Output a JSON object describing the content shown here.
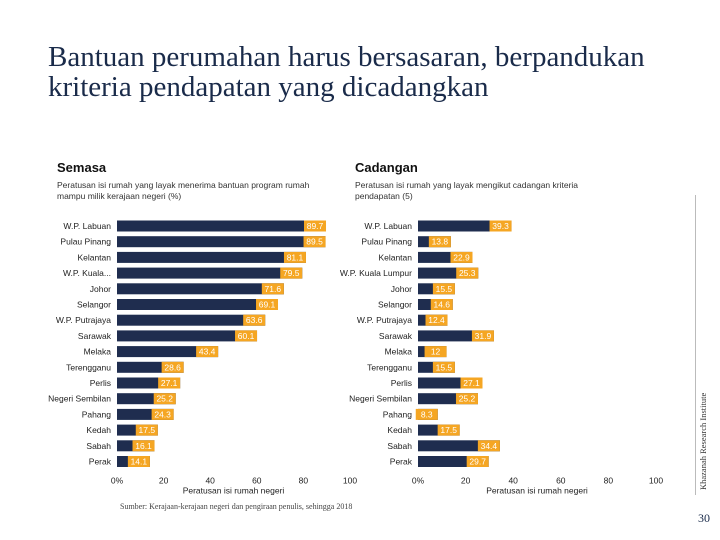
{
  "title": "Bantuan perumahan harus bersasaran, berpandukan kriteria pendapatan yang dicadangkan",
  "source": "Sumber: Kerajaan-kerajaan negeri dan pengiraan penulis, sehingga 2018",
  "side_label": "Khazanah Research Institute",
  "page_number": "30",
  "colors": {
    "bar": "#1f2d4f",
    "label_bg": "#f5a623",
    "label_text": "#ffffff"
  },
  "left": {
    "heading": "Semasa",
    "subtitle": "Peratusan isi rumah yang layak menerima bantuan program rumah mampu milik kerajaan negeri (%)"
  },
  "right": {
    "heading": "Cadangan",
    "subtitle": "Peratusan isi rumah yang layak mengikut cadangan kriteria pendapatan (5)"
  },
  "chart_data": [
    {
      "type": "bar",
      "orientation": "horizontal",
      "categories": [
        "W.P. Labuan",
        "Pulau Pinang",
        "Kelantan",
        "W.P. Kuala...",
        "Johor",
        "Selangor",
        "W.P. Putrajaya",
        "Sarawak",
        "Melaka",
        "Terengganu",
        "Perlis",
        "Negeri Sembilan",
        "Pahang",
        "Kedah",
        "Sabah",
        "Perak"
      ],
      "values": [
        89.7,
        89.5,
        81.1,
        79.5,
        71.6,
        69.1,
        63.6,
        60.1,
        43.4,
        28.6,
        27.1,
        25.2,
        24.3,
        17.5,
        16.1,
        14.1
      ],
      "value_labels": [
        "89.7",
        "89.5",
        "81.1",
        "79.5",
        "71.6",
        "69.1",
        "63.6",
        "60.1",
        "43.4",
        "28.6",
        "27.1",
        "25.2",
        "24.3",
        "17.5",
        "16.1",
        "14.1"
      ],
      "xlim": [
        0,
        100
      ],
      "xticks": [
        "0%",
        "20",
        "40",
        "60",
        "80",
        "100"
      ],
      "xlabel": "Peratusan isi rumah negeri"
    },
    {
      "type": "bar",
      "orientation": "horizontal",
      "categories": [
        "W.P. Labuan",
        "Pulau Pinang",
        "Kelantan",
        "W.P. Kuala Lumpur",
        "Johor",
        "Selangor",
        "W.P. Putrajaya",
        "Sarawak",
        "Melaka",
        "Terengganu",
        "Perlis",
        "Negeri Sembilan",
        "Pahang",
        "Kedah",
        "Sabah",
        "Perak"
      ],
      "values": [
        39.3,
        13.8,
        22.9,
        25.3,
        15.5,
        14.6,
        12.4,
        31.9,
        12,
        15.5,
        27.1,
        25.2,
        8.3,
        17.5,
        34.4,
        29.7
      ],
      "value_labels": [
        "39.3",
        "13.8",
        "22.9",
        "25.3",
        "15.5",
        "14.6",
        "12.4",
        "31.9",
        "12",
        "15.5",
        "27.1",
        "25.2",
        "8.3",
        "17.5",
        "34.4",
        "29.7"
      ],
      "xlim": [
        0,
        100
      ],
      "xticks": [
        "0%",
        "20",
        "40",
        "60",
        "80",
        "100"
      ],
      "xlabel": "Peratusan isi rumah negeri"
    }
  ]
}
